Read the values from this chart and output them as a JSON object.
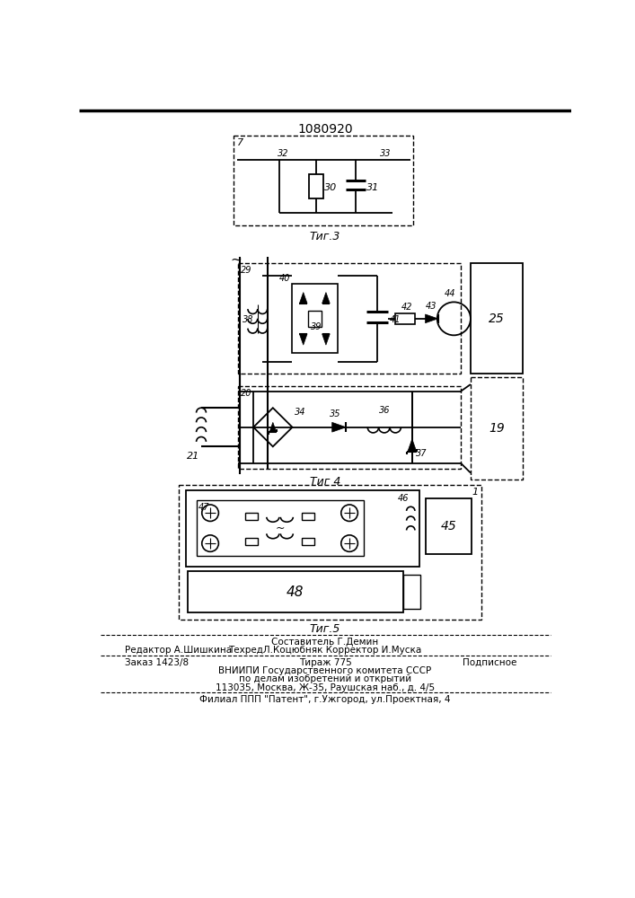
{
  "patent_number": "1080920",
  "fig3_label": "Τиг.3",
  "fig4_label": "Τиг 4",
  "fig5_label": "Τиг.5",
  "footer_line1_left": "Редактор А.Шишкина",
  "footer_line1_center": "Составитель Г.Демин",
  "footer_line1_right": "ТехредЛ.Коцюбняк Корректор И.Муска",
  "footer_line2_left": "Заказ 1423/8",
  "footer_line2_center": "Тираж 775",
  "footer_line2_right": "Подписное",
  "footer_line3": "ВНИИПИ Государственного комитета СССР",
  "footer_line4": "по делам изобретений и открытий",
  "footer_line5": "113035, Москва, Ж-35, Раушская наб., д. 4/5",
  "footer_line6": "Филиал ППП \"Патент\", г.Ужгород, ул.Проектная, 4",
  "bg_color": "#ffffff",
  "text_color": "#000000"
}
